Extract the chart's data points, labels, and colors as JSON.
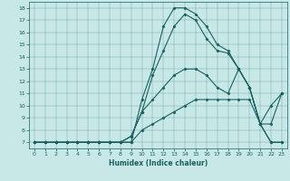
{
  "xlabel": "Humidex (Indice chaleur)",
  "bg_color": "#c8e8e8",
  "line_color": "#1a6060",
  "xlim": [
    -0.5,
    23.5
  ],
  "ylim": [
    6.5,
    18.5
  ],
  "xticks": [
    0,
    1,
    2,
    3,
    4,
    5,
    6,
    7,
    8,
    9,
    10,
    11,
    12,
    13,
    14,
    15,
    16,
    17,
    18,
    19,
    20,
    21,
    22,
    23
  ],
  "yticks": [
    7,
    8,
    9,
    10,
    11,
    12,
    13,
    14,
    15,
    16,
    17,
    18
  ],
  "lines": [
    {
      "x": [
        0,
        1,
        2,
        3,
        4,
        5,
        6,
        7,
        8,
        9,
        10,
        11,
        12,
        13,
        14,
        15,
        16,
        17,
        18,
        19,
        20,
        21,
        22,
        23
      ],
      "y": [
        7,
        7,
        7,
        7,
        7,
        7,
        7,
        7,
        7,
        7,
        10.5,
        13,
        16.5,
        18,
        18,
        17.5,
        16.5,
        15,
        14.5,
        13,
        11.5,
        8.5,
        7,
        7
      ]
    },
    {
      "x": [
        0,
        1,
        2,
        3,
        4,
        5,
        6,
        7,
        8,
        9,
        10,
        11,
        12,
        13,
        14,
        15,
        16,
        17,
        18,
        19,
        20,
        21,
        22,
        23
      ],
      "y": [
        7,
        7,
        7,
        7,
        7,
        7,
        7,
        7,
        7,
        7.5,
        9.5,
        12.5,
        14.5,
        16.5,
        17.5,
        17,
        15.5,
        14.5,
        14.3,
        13,
        11.5,
        8.5,
        7,
        7
      ]
    },
    {
      "x": [
        0,
        1,
        2,
        3,
        4,
        5,
        6,
        7,
        8,
        9,
        10,
        11,
        12,
        13,
        14,
        15,
        16,
        17,
        18,
        19,
        20,
        21,
        22,
        23
      ],
      "y": [
        7,
        7,
        7,
        7,
        7,
        7,
        7,
        7,
        7,
        7.5,
        9.5,
        10.5,
        11.5,
        12.5,
        13,
        13,
        12.5,
        11.5,
        11,
        13,
        11.5,
        8.5,
        8.5,
        11
      ]
    },
    {
      "x": [
        0,
        1,
        2,
        3,
        4,
        5,
        6,
        7,
        8,
        9,
        10,
        11,
        12,
        13,
        14,
        15,
        16,
        17,
        18,
        19,
        20,
        21,
        22,
        23
      ],
      "y": [
        7,
        7,
        7,
        7,
        7,
        7,
        7,
        7,
        7,
        7,
        8,
        8.5,
        9,
        9.5,
        10,
        10.5,
        10.5,
        10.5,
        10.5,
        10.5,
        10.5,
        8.5,
        10,
        11
      ]
    }
  ]
}
